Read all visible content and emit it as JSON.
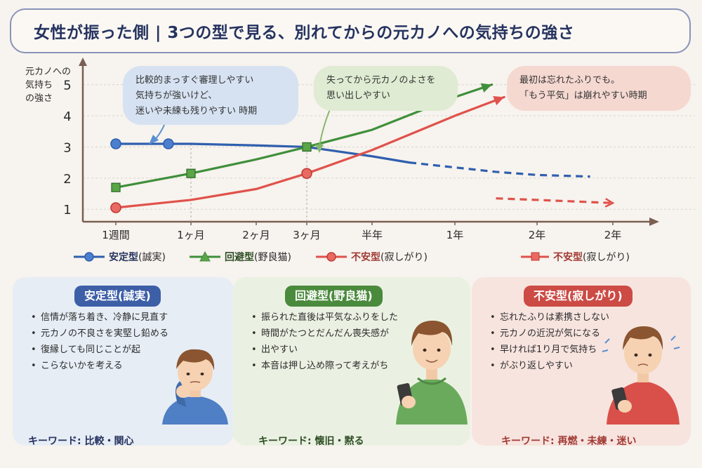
{
  "title": "女性が振った側 | 3つの型で見る、別れてからの元カノへの気持ちの強さ",
  "colors": {
    "stable": "#2f5fae",
    "avoidant": "#3f8f3a",
    "anxious": "#e0524b"
  },
  "bubbles": {
    "blue": [
      "比較的まっすぐ審理しやすい",
      "気持ちが強いけど、",
      "迷いや未練も残りやすい 時期"
    ],
    "green": [
      "失ってから元カノのよさを",
      "思い出しやすい"
    ],
    "red": [
      "最初は忘れたふりでも。",
      "「もう平気」は崩れやすい時期"
    ]
  },
  "legend": [
    {
      "name": "安定型",
      "sub": "(誠実)",
      "color": "#2f5fae",
      "marker": "circle"
    },
    {
      "name": "回避型",
      "sub": "(野良猫)",
      "color": "#3f8f3a",
      "marker": "triangle"
    },
    {
      "name": "不安型",
      "sub": "(寂しがり)",
      "color": "#e0524b",
      "marker": "circle"
    },
    {
      "name": "不安型",
      "sub": "(寂しがり)",
      "color": "#e0524b",
      "marker": "square"
    }
  ],
  "panels": {
    "blue": {
      "title": "安定型(誠実)",
      "bullets": [
        "信情が落ち着き、冷静に見直す",
        "元カノの不良さを実堅し鉛める",
        "復縁しても同じことが起",
        "こらないかを考える"
      ],
      "keyword": "キーワード: 比較・関心"
    },
    "green": {
      "title": "回避型(野良猫)",
      "bullets": [
        "振られた直後は平気なふりをした",
        "時間がたつとだんだん喪失感が",
        "出やすい",
        "本音は押し込め際って考えがち"
      ],
      "keyword": "キーワード: 懐旧・黙る"
    },
    "red": {
      "title": "不安型(寂しがり)",
      "bullets": [
        "忘れたふりは素携さしない",
        "元カノの近況が気になる",
        "早ければ1り月で気持ち",
        "がぶり返しやすい"
      ],
      "keyword": "キーワード: 再燃・未練・迷い"
    }
  },
  "chart_data": {
    "type": "line",
    "ylabel": "元カノへの 気持ち の強さ",
    "ylabel_lines": [
      "元カノへの",
      "気持ち",
      "の強さ"
    ],
    "ylim": [
      0.6,
      5.6
    ],
    "yticks": [
      1,
      2,
      3,
      4,
      5
    ],
    "categories": [
      "1週間",
      "1ヶ月",
      "2ヶ月",
      "3ヶ月",
      "半年",
      "1年",
      "2年",
      "2年"
    ],
    "grid": true,
    "series": [
      {
        "name": "安定型",
        "color": "#2f5fae",
        "marker": "circle",
        "points": [
          [
            0,
            3.1
          ],
          [
            0.7,
            3.1
          ],
          [
            1,
            3.1
          ],
          [
            2,
            3.05
          ],
          [
            3,
            3.0
          ],
          [
            4,
            2.7
          ],
          [
            4.45,
            2.5
          ]
        ],
        "dashed_points": [
          [
            4.45,
            2.5
          ],
          [
            5.5,
            2.2
          ],
          [
            6,
            2.1
          ],
          [
            6.7,
            2.05
          ]
        ],
        "markers": [
          0,
          1
        ]
      },
      {
        "name": "回避型",
        "color": "#3f8f3a",
        "marker": "triangle",
        "points": [
          [
            0,
            1.7
          ],
          [
            1,
            2.15
          ],
          [
            2,
            2.6
          ],
          [
            3,
            3.0
          ],
          [
            4,
            3.55
          ],
          [
            5,
            4.6
          ],
          [
            5.45,
            5.0
          ]
        ],
        "markers": [
          0,
          1,
          3
        ]
      },
      {
        "name": "不安型",
        "color": "#e0524b",
        "marker": "circle",
        "points": [
          [
            0,
            1.05
          ],
          [
            1,
            1.3
          ],
          [
            2,
            1.65
          ],
          [
            3,
            2.15
          ],
          [
            4,
            2.9
          ],
          [
            5,
            4.0
          ],
          [
            5.6,
            4.6
          ]
        ],
        "dashed_points": [
          [
            5.5,
            1.35
          ],
          [
            6,
            1.3
          ],
          [
            7,
            1.2
          ]
        ],
        "markers": [
          0,
          3
        ]
      }
    ]
  }
}
